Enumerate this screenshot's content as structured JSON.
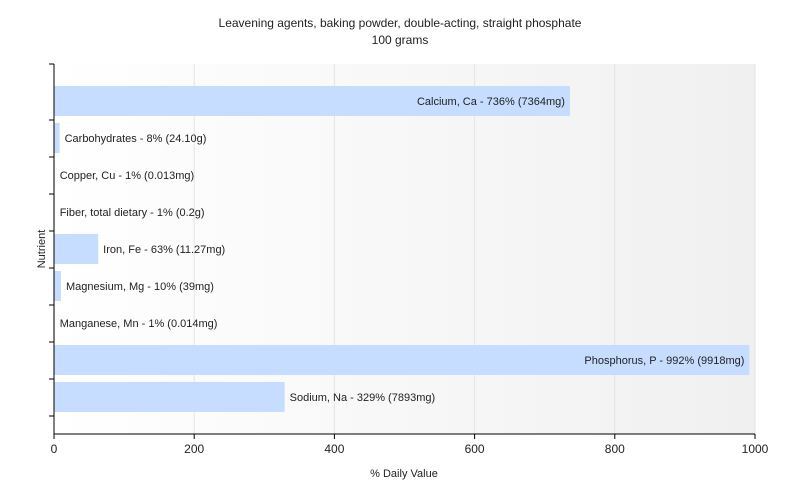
{
  "chart_data": {
    "type": "bar",
    "orientation": "horizontal",
    "title": "Leavening agents, baking powder, double-acting, straight phosphate",
    "subtitle": "100 grams",
    "xlabel": "% Daily Value",
    "ylabel": "Nutrient",
    "xlim": [
      0,
      1000
    ],
    "xticks": [
      0,
      200,
      400,
      600,
      800,
      1000
    ],
    "grid": true,
    "bar_color": "#c6ddff",
    "categories": [
      "Calcium, Ca",
      "Carbohydrates",
      "Copper, Cu",
      "Fiber, total dietary",
      "Iron, Fe",
      "Magnesium, Mg",
      "Manganese, Mn",
      "Phosphorus, P",
      "Sodium, Na"
    ],
    "values": [
      736,
      8,
      1,
      1,
      63,
      10,
      1,
      992,
      329
    ],
    "labels": [
      "Calcium, Ca - 736% (7364mg)",
      "Carbohydrates - 8% (24.10g)",
      "Copper, Cu - 1% (0.013mg)",
      "Fiber, total dietary - 1% (0.2g)",
      "Iron, Fe - 63% (11.27mg)",
      "Magnesium, Mg - 10% (39mg)",
      "Manganese, Mn - 1% (0.014mg)",
      "Phosphorus, P - 992% (9918mg)",
      "Sodium, Na - 329% (7893mg)"
    ]
  }
}
